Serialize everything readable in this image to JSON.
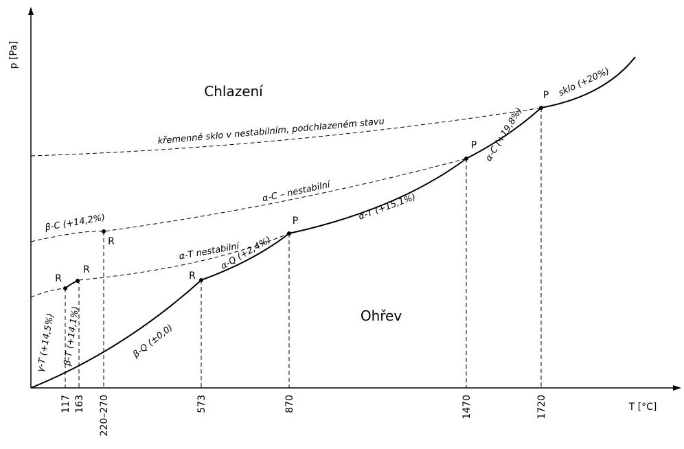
{
  "axes": {
    "y_label": "p [Pa]",
    "x_label": "T [°C]"
  },
  "ticks": [
    "117",
    "163",
    "220–270",
    "573",
    "870",
    "1470",
    "1720"
  ],
  "regions": [
    "Chlazení",
    "Ohřev"
  ],
  "phase_labels": [
    "γ-T (+14,5%)",
    "β-T (+14,1%)",
    "β-Q (±0,0)",
    "α-Q (+2,4%)",
    "α-T (+15,1%)",
    "α-C (+19,8%)",
    "sklo (+20%)",
    "β-C (+14,2%)",
    "α-T nestabilní",
    "α-C – nestabilní",
    "křemenné sklo v nestabilním, podchlazeném stavu"
  ],
  "point_labels": [
    "R",
    "R",
    "R",
    "R",
    "P",
    "P",
    "P"
  ]
}
